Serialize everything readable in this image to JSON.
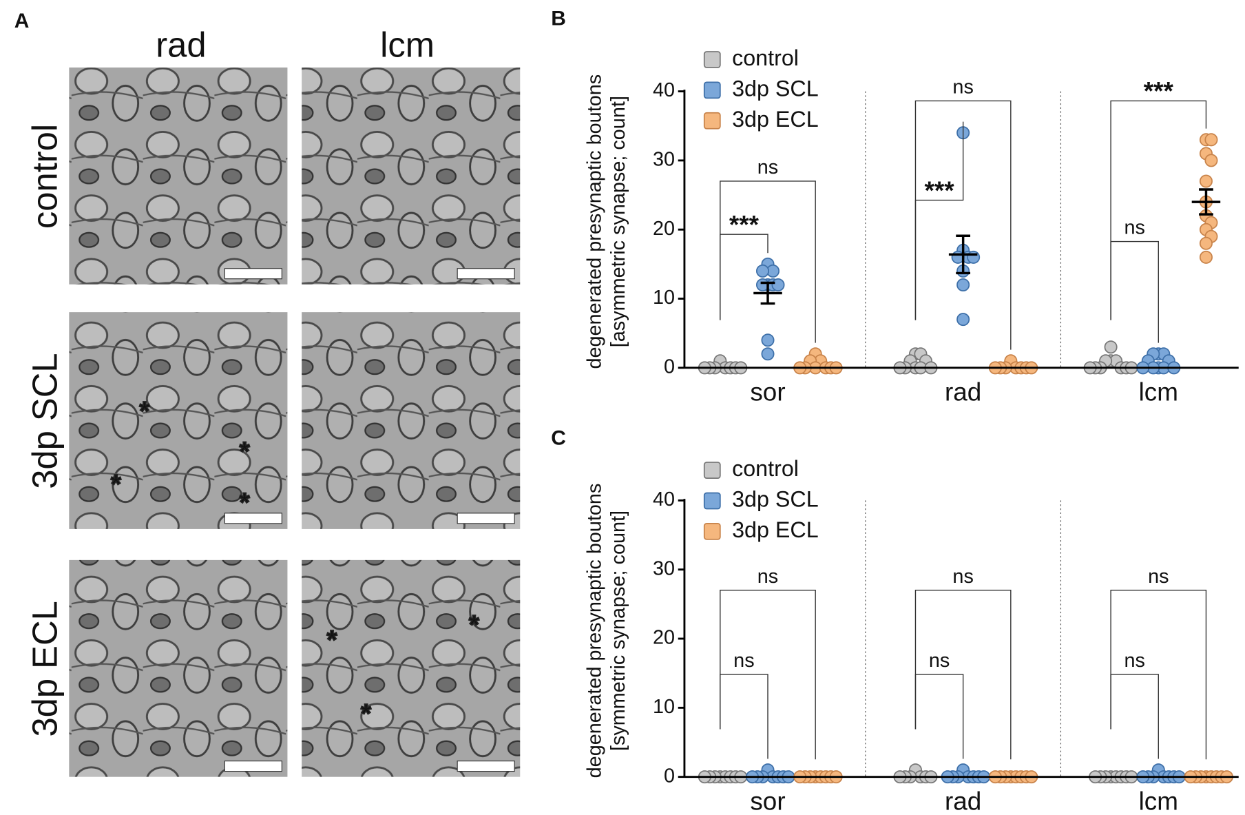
{
  "panel_a": {
    "letter": "A",
    "columns": [
      "rad",
      "lcm"
    ],
    "rows": [
      "control",
      "3dp SCL",
      "3dp ECL"
    ],
    "asterisk": "*"
  },
  "chart_data": [
    {
      "type": "dot",
      "letter": "B",
      "ylabel": [
        "degenerated presynaptic boutons",
        "[asymmetric synapse; count]"
      ],
      "categories": [
        "sor",
        "rad",
        "lcm"
      ],
      "ylim": [
        0,
        40
      ],
      "yticks": [
        0,
        10,
        20,
        30,
        40
      ],
      "series": [
        {
          "name": "control",
          "color": "#c8c8c8",
          "stroke": "#777777",
          "values": [
            [
              1,
              0,
              0,
              0,
              0,
              0,
              0,
              0
            ],
            [
              2,
              2,
              1,
              1,
              0,
              0,
              0,
              0,
              0
            ],
            [
              3,
              1,
              1,
              1,
              0,
              0,
              0,
              0,
              0,
              0
            ]
          ],
          "mean": [
            null,
            null,
            null
          ],
          "sem": [
            null,
            null,
            null
          ]
        },
        {
          "name": "3dp SCL",
          "color": "#7ba7d9",
          "stroke": "#3d6fa8",
          "values": [
            [
              15,
              14,
              14,
              12,
              12,
              12,
              12,
              4,
              2
            ],
            [
              34,
              17,
              16,
              16,
              16,
              14,
              12,
              7
            ],
            [
              2,
              2,
              2,
              1,
              1,
              0,
              0,
              0,
              0,
              0
            ]
          ],
          "mean": [
            10.8,
            16.4,
            null
          ],
          "sem": [
            1.5,
            2.7,
            null
          ]
        },
        {
          "name": "3dp ECL",
          "color": "#f5b77e",
          "stroke": "#c8834a",
          "values": [
            [
              2,
              1,
              1,
              0,
              0,
              0,
              0,
              0,
              0
            ],
            [
              1,
              0,
              0,
              0,
              0,
              0,
              0,
              0
            ],
            [
              33,
              33,
              31,
              30,
              27,
              24,
              22,
              21,
              20,
              19,
              18,
              16
            ]
          ],
          "mean": [
            null,
            null,
            24
          ],
          "sem": [
            null,
            null,
            1.8
          ]
        }
      ],
      "annotations": [
        {
          "label": "***",
          "category": 0,
          "from": 0,
          "to": 1
        },
        {
          "label": "ns",
          "category": 0,
          "from": 0,
          "to": 2
        },
        {
          "label": "***",
          "category": 1,
          "from": 0,
          "to": 1
        },
        {
          "label": "ns",
          "category": 1,
          "from": 0,
          "to": 2
        },
        {
          "label": "ns",
          "category": 2,
          "from": 0,
          "to": 1
        },
        {
          "label": "***",
          "category": 2,
          "from": 0,
          "to": 2
        }
      ]
    },
    {
      "type": "dot",
      "letter": "C",
      "ylabel": [
        "degenerated presynaptic boutons",
        "[symmetric synapse; count]"
      ],
      "categories": [
        "sor",
        "rad",
        "lcm"
      ],
      "ylim": [
        0,
        40
      ],
      "yticks": [
        0,
        10,
        20,
        30,
        40
      ],
      "series": [
        {
          "name": "control",
          "color": "#c8c8c8",
          "stroke": "#777777",
          "values": [
            [
              0,
              0,
              0,
              0,
              0,
              0,
              0,
              0
            ],
            [
              1,
              0,
              0,
              0,
              0,
              0,
              0
            ],
            [
              0,
              0,
              0,
              0,
              0,
              0,
              0,
              0
            ]
          ],
          "mean": [
            null,
            null,
            null
          ],
          "sem": [
            null,
            null,
            null
          ]
        },
        {
          "name": "3dp SCL",
          "color": "#7ba7d9",
          "stroke": "#3d6fa8",
          "values": [
            [
              1,
              0,
              0,
              0,
              0,
              0,
              0,
              0
            ],
            [
              1,
              0,
              0,
              0,
              0,
              0,
              0,
              0
            ],
            [
              1,
              0,
              0,
              0,
              0,
              0,
              0,
              0
            ]
          ],
          "mean": [
            null,
            null,
            null
          ],
          "sem": [
            null,
            null,
            null
          ]
        },
        {
          "name": "3dp ECL",
          "color": "#f5b77e",
          "stroke": "#c8834a",
          "values": [
            [
              0,
              0,
              0,
              0,
              0,
              0,
              0,
              0
            ],
            [
              0,
              0,
              0,
              0,
              0,
              0,
              0,
              0
            ],
            [
              0,
              0,
              0,
              0,
              0,
              0,
              0,
              0
            ]
          ],
          "mean": [
            null,
            null,
            null
          ],
          "sem": [
            null,
            null,
            null
          ]
        }
      ],
      "annotations": [
        {
          "label": "ns",
          "category": 0,
          "from": 0,
          "to": 1
        },
        {
          "label": "ns",
          "category": 0,
          "from": 0,
          "to": 2
        },
        {
          "label": "ns",
          "category": 1,
          "from": 0,
          "to": 1
        },
        {
          "label": "ns",
          "category": 1,
          "from": 0,
          "to": 2
        },
        {
          "label": "ns",
          "category": 2,
          "from": 0,
          "to": 1
        },
        {
          "label": "ns",
          "category": 2,
          "from": 0,
          "to": 2
        }
      ]
    }
  ]
}
